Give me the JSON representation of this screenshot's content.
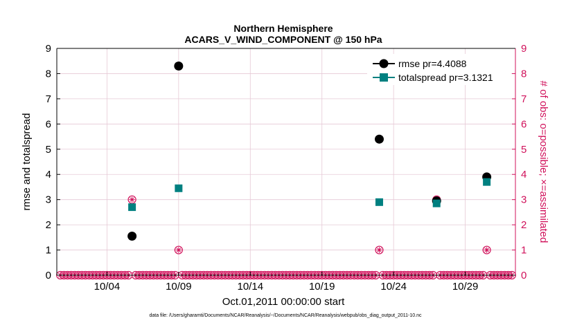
{
  "chart_data": {
    "type": "scatter",
    "title_line1": "Northern Hemisphere",
    "title_line2": "ACARS_V_WIND_COMPONENT @ 150 hPa",
    "xlabel": "Oct.01,2011 00:00:00 start",
    "ylabel_left": "rmse and totalspread",
    "ylabel_right": "# of obs: o=possible; ×=assimilated",
    "footnote": "data file: /Users/gharamti/Documents/NCAR/Reanalysis/~/Documents/NCAR/Reanalysis/webpub/obs_diag_output_2011-10.nc",
    "xlim": [
      0.0,
      32.0
    ],
    "ylim": [
      0,
      9
    ],
    "ylim_right": [
      0,
      9
    ],
    "x_ticks": [
      {
        "x": 3.5,
        "label": "10/04"
      },
      {
        "x": 8.5,
        "label": "10/09"
      },
      {
        "x": 13.5,
        "label": "10/14"
      },
      {
        "x": 18.5,
        "label": "10/19"
      },
      {
        "x": 23.5,
        "label": "10/24"
      },
      {
        "x": 28.5,
        "label": "10/29"
      }
    ],
    "y_ticks": [
      0,
      1,
      2,
      3,
      4,
      5,
      6,
      7,
      8,
      9
    ],
    "grid": true,
    "legend_position": "top-right",
    "colors": {
      "rmse": "#000000",
      "totalspread": "#008080",
      "obs": "#d0105a",
      "grid": "#e6c9d6"
    },
    "series": [
      {
        "name": "rmse pr=4.4088",
        "marker": "circle",
        "points": [
          [
            5.25,
            1.55
          ],
          [
            8.5,
            8.3
          ],
          [
            22.5,
            5.4
          ],
          [
            26.5,
            2.95
          ],
          [
            30.0,
            3.9
          ]
        ]
      },
      {
        "name": "totalspread pr=3.1321",
        "marker": "square",
        "points": [
          [
            5.25,
            2.7
          ],
          [
            8.5,
            3.45
          ],
          [
            22.5,
            2.9
          ],
          [
            26.5,
            2.85
          ],
          [
            30.0,
            3.7
          ]
        ]
      }
    ],
    "obs_possible": [
      [
        5.25,
        3
      ],
      [
        8.5,
        1
      ],
      [
        22.5,
        1
      ],
      [
        26.5,
        3
      ],
      [
        30.0,
        1
      ]
    ],
    "obs_assimilated": [
      [
        5.25,
        3
      ],
      [
        8.5,
        1
      ],
      [
        22.5,
        1
      ],
      [
        26.5,
        3
      ],
      [
        30.0,
        1
      ]
    ],
    "obs_zero_step": 0.25
  }
}
